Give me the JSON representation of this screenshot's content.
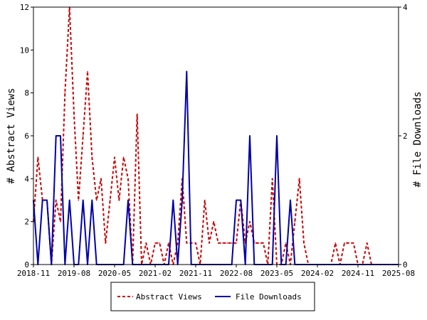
{
  "chart_data": {
    "type": "line",
    "x_dates": [
      "2018-11",
      "2018-12",
      "2019-01",
      "2019-02",
      "2019-03",
      "2019-04",
      "2019-05",
      "2019-06",
      "2019-07",
      "2019-08",
      "2019-09",
      "2019-10",
      "2019-11",
      "2019-12",
      "2020-01",
      "2020-02",
      "2020-03",
      "2020-04",
      "2020-05",
      "2020-06",
      "2020-07",
      "2020-08",
      "2020-09",
      "2020-10",
      "2020-11",
      "2020-12",
      "2021-01",
      "2021-02",
      "2021-03",
      "2021-04",
      "2021-05",
      "2021-06",
      "2021-07",
      "2021-08",
      "2021-09",
      "2021-10",
      "2021-11",
      "2021-12",
      "2022-01",
      "2022-02",
      "2022-03",
      "2022-04",
      "2022-05",
      "2022-06",
      "2022-07",
      "2022-08",
      "2022-09",
      "2022-10",
      "2022-11",
      "2022-12",
      "2023-01",
      "2023-02",
      "2023-03",
      "2023-04",
      "2023-05",
      "2023-06",
      "2023-07",
      "2023-08",
      "2023-09",
      "2023-10",
      "2023-11",
      "2023-12",
      "2024-01",
      "2024-02",
      "2024-03",
      "2024-04",
      "2024-05",
      "2024-06",
      "2024-07",
      "2024-08",
      "2024-09",
      "2024-10",
      "2024-11",
      "2024-12",
      "2025-01",
      "2025-02",
      "2025-03",
      "2025-04",
      "2025-05",
      "2025-06",
      "2025-07",
      "2025-08"
    ],
    "series": [
      {
        "name": "Abstract Views",
        "axis": "left",
        "color": "#cc0000",
        "dash": true,
        "values": [
          2,
          5,
          3,
          3,
          0,
          3,
          2,
          8,
          12,
          7,
          3,
          6,
          9,
          5,
          3,
          4,
          1,
          3,
          5,
          3,
          5,
          4,
          0,
          7,
          0,
          1,
          0,
          1,
          1,
          0,
          1,
          0,
          1,
          4,
          1,
          1,
          1,
          0,
          3,
          1,
          2,
          1,
          1,
          1,
          1,
          1,
          3,
          1,
          2,
          1,
          1,
          1,
          0,
          4,
          0,
          0,
          1,
          0,
          2,
          4,
          1,
          0,
          0,
          0,
          0,
          0,
          0,
          1,
          0,
          1,
          1,
          1,
          0,
          0,
          1,
          0,
          0,
          0,
          0,
          0,
          0,
          0
        ]
      },
      {
        "name": "File Downloads",
        "axis": "right",
        "color": "#0000aa",
        "dash": false,
        "values": [
          1,
          0,
          1,
          1,
          0,
          2,
          2,
          0,
          1,
          0,
          0,
          1,
          0,
          1,
          0,
          0,
          0,
          0,
          0,
          0,
          0,
          1,
          0,
          0,
          0,
          0,
          0,
          0,
          0,
          0,
          0,
          1,
          0,
          1,
          3,
          0,
          0,
          0,
          0,
          0,
          0,
          0,
          0,
          0,
          0,
          1,
          1,
          0,
          2,
          0,
          0,
          0,
          0,
          0,
          2,
          0,
          0,
          1,
          0,
          0,
          0,
          0,
          0,
          0,
          0,
          0,
          0,
          0,
          0,
          0,
          0,
          0,
          0,
          0,
          0,
          0,
          0,
          0,
          0,
          0,
          0,
          0
        ]
      }
    ],
    "xlabel": "",
    "ylabel": "# Abstract Views",
    "y2label": "# File Downloads",
    "ylim": [
      0,
      12
    ],
    "y2lim": [
      0,
      4
    ],
    "yticks": [
      "0",
      "2",
      "4",
      "6",
      "8",
      "10",
      "12"
    ],
    "y2ticks": [
      "0",
      "2",
      "4"
    ],
    "xticks": [
      "2018-11",
      "2019-08",
      "2020-05",
      "2021-02",
      "2021-11",
      "2022-08",
      "2023-05",
      "2024-02",
      "2024-11",
      "2025-08"
    ],
    "grid": false,
    "legend_position": "bottom"
  }
}
